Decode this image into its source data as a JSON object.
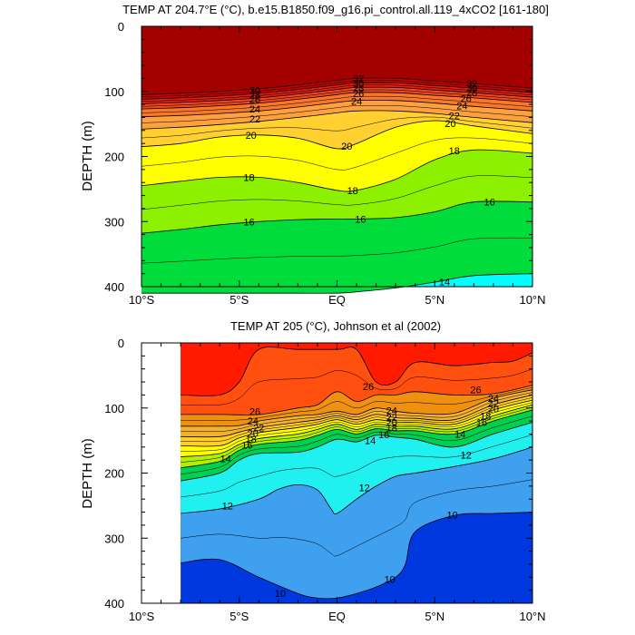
{
  "chart_data": [
    {
      "type": "contour",
      "title": "TEMP AT 204.7°E (°C), b.e15.B1850.f09_g16.pi_control.all.119_4xCO2 [161-180]",
      "ylabel": "DEPTH (m)",
      "x_ticks": [
        "10°S",
        "5°S",
        "EQ",
        "5°N",
        "10°N"
      ],
      "x_tick_values": [
        -10,
        -5,
        0,
        5,
        10
      ],
      "xlim": [
        -10,
        10
      ],
      "y_ticks": [
        "0",
        "100",
        "200",
        "300",
        "400"
      ],
      "y_tick_values": [
        0,
        100,
        200,
        300,
        400
      ],
      "ylim": [
        400,
        0
      ],
      "data_xmin": -10,
      "contour_labels": [
        "32",
        "30",
        "28",
        "26",
        "24",
        "22",
        "20",
        "18",
        "16",
        "14"
      ],
      "isotherms": [
        {
          "temp": 32,
          "x": [
            -10,
            -8,
            -6,
            -4,
            -2,
            0,
            1,
            3,
            5,
            7,
            10
          ],
          "depth": [
            105,
            103,
            100,
            96,
            90,
            83,
            80,
            80,
            84,
            88,
            95
          ]
        },
        {
          "temp": 30,
          "x": [
            -10,
            -8,
            -6,
            -4,
            -2,
            0,
            1,
            3,
            5,
            7,
            10
          ],
          "depth": [
            112,
            110,
            107,
            103,
            97,
            90,
            87,
            87,
            91,
            95,
            102
          ]
        },
        {
          "temp": 28,
          "x": [
            -10,
            -8,
            -6,
            -4,
            -2,
            0,
            1,
            3,
            5,
            7,
            10
          ],
          "depth": [
            119,
            117,
            114,
            110,
            104,
            97,
            94,
            94,
            98,
            102,
            109
          ]
        },
        {
          "temp": 26,
          "x": [
            -10,
            -8,
            -6,
            -4,
            -2,
            0,
            1,
            3,
            5,
            7,
            10
          ],
          "depth": [
            127,
            125,
            122,
            118,
            112,
            105,
            102,
            102,
            106,
            110,
            117
          ]
        },
        {
          "temp": 24,
          "x": [
            -10,
            -8,
            -6,
            -4,
            -2,
            0,
            1,
            3,
            5,
            7,
            10
          ],
          "depth": [
            139,
            137,
            134,
            130,
            124,
            117,
            114,
            114,
            118,
            123,
            130
          ]
        },
        {
          "temp": 22,
          "x": [
            -10,
            -8,
            -6,
            -4,
            -2,
            0,
            1,
            3,
            5,
            7,
            10
          ],
          "depth": [
            158,
            155,
            151,
            146,
            140,
            133,
            130,
            130,
            134,
            140,
            148
          ]
        },
        {
          "temp": 20,
          "x": [
            -10,
            -8,
            -6,
            -4,
            -2,
            0,
            1,
            3,
            5,
            7,
            10
          ],
          "depth": [
            185,
            180,
            170,
            167,
            172,
            188,
            180,
            155,
            145,
            153,
            165
          ]
        },
        {
          "temp": 18,
          "x": [
            -10,
            -8,
            -6,
            -4,
            -2,
            0,
            1,
            3,
            5,
            7,
            10
          ],
          "depth": [
            245,
            238,
            232,
            232,
            240,
            252,
            252,
            235,
            205,
            190,
            195
          ]
        },
        {
          "temp": 16,
          "x": [
            -10,
            -8,
            -6,
            -4,
            -2,
            0,
            1,
            3,
            5,
            7,
            10
          ],
          "depth": [
            318,
            312,
            305,
            300,
            297,
            296,
            296,
            294,
            285,
            270,
            270
          ]
        },
        {
          "temp": 14,
          "x": [
            -10,
            -8,
            -6,
            -4,
            -2,
            0,
            1,
            3,
            5,
            7,
            10
          ],
          "depth": [
            410,
            410,
            410,
            410,
            410,
            410,
            408,
            402,
            393,
            383,
            380
          ]
        }
      ]
    },
    {
      "type": "contour",
      "title": "TEMP AT 205 (°C), Johnson et al (2002)",
      "ylabel": "DEPTH (m)",
      "x_ticks": [
        "10°S",
        "5°S",
        "EQ",
        "5°N",
        "10°N"
      ],
      "x_tick_values": [
        -10,
        -5,
        0,
        5,
        10
      ],
      "xlim": [
        -10,
        10
      ],
      "y_ticks": [
        "0",
        "100",
        "200",
        "300",
        "400"
      ],
      "y_tick_values": [
        0,
        100,
        200,
        300,
        400
      ],
      "ylim": [
        400,
        0
      ],
      "data_xmin": -8,
      "contour_labels": [
        "26",
        "26",
        "26",
        "24",
        "24",
        "22",
        "22",
        "20",
        "20",
        "18",
        "16",
        "16",
        "14",
        "14",
        "14",
        "12",
        "12",
        "12",
        "10",
        "10",
        "10",
        "24",
        "22",
        "20",
        "18"
      ],
      "isotherms": [
        {
          "temp": 28,
          "x": [
            -8,
            -6,
            -5,
            -4,
            -2,
            0,
            1,
            2,
            3,
            4,
            6,
            8,
            9,
            10
          ],
          "depth": [
            80,
            80,
            60,
            10,
            10,
            10,
            10,
            60,
            60,
            30,
            35,
            30,
            28,
            15
          ]
        },
        {
          "temp": 26,
          "x": [
            -8,
            -6,
            -4,
            -2,
            -1,
            0,
            1,
            2,
            3,
            4,
            6,
            8,
            10
          ],
          "depth": [
            110,
            110,
            110,
            100,
            95,
            75,
            90,
            80,
            80,
            75,
            80,
            78,
            65
          ]
        },
        {
          "temp": 24,
          "x": [
            -8,
            -6,
            -5,
            -4,
            -2,
            -1,
            0,
            1,
            2,
            3,
            4,
            6,
            8,
            10
          ],
          "depth": [
            128,
            128,
            127,
            120,
            112,
            110,
            105,
            110,
            100,
            105,
            108,
            108,
            85,
            72
          ]
        },
        {
          "temp": 22,
          "x": [
            -8,
            -6,
            -5,
            -4,
            -2,
            -1,
            0,
            1,
            2,
            3,
            4,
            6,
            8,
            10
          ],
          "depth": [
            144,
            144,
            137,
            130,
            122,
            118,
            112,
            118,
            110,
            115,
            116,
            118,
            95,
            80
          ]
        },
        {
          "temp": 20,
          "x": [
            -8,
            -6,
            -5,
            -4,
            -2,
            -1,
            0,
            1,
            2,
            3,
            4,
            6,
            8,
            10
          ],
          "depth": [
            158,
            158,
            146,
            138,
            130,
            125,
            118,
            125,
            118,
            122,
            122,
            125,
            103,
            88
          ]
        },
        {
          "temp": 18,
          "x": [
            -8,
            -6,
            -5,
            -4,
            -2,
            -1,
            0,
            1,
            2,
            3,
            4,
            6,
            8,
            10
          ],
          "depth": [
            175,
            170,
            156,
            147,
            140,
            133,
            125,
            133,
            125,
            128,
            128,
            132,
            112,
            95
          ]
        },
        {
          "temp": 16,
          "x": [
            -8,
            -6,
            -5,
            -4,
            -2,
            -1,
            0,
            1,
            2,
            3,
            4,
            6,
            8,
            10
          ],
          "depth": [
            192,
            182,
            165,
            156,
            150,
            142,
            133,
            140,
            132,
            135,
            135,
            140,
            120,
            103
          ]
        },
        {
          "temp": 14,
          "x": [
            -8,
            -6,
            -5,
            -4,
            -2,
            -1,
            0,
            1,
            2,
            3,
            4,
            6,
            8,
            10
          ],
          "depth": [
            212,
            200,
            180,
            170,
            168,
            160,
            148,
            152,
            142,
            145,
            148,
            160,
            140,
            122
          ]
        },
        {
          "temp": 12,
          "x": [
            -8,
            -6,
            -4,
            -3,
            -2,
            -1,
            -0.3,
            0,
            1,
            2,
            3,
            4,
            6,
            8,
            10
          ],
          "depth": [
            262,
            255,
            240,
            225,
            218,
            226,
            255,
            262,
            240,
            220,
            205,
            200,
            190,
            178,
            160
          ]
        },
        {
          "temp": 10,
          "x": [
            -8,
            -6,
            -4,
            -2,
            -1,
            0,
            1,
            2,
            3,
            3.5,
            4,
            6,
            8,
            10
          ],
          "depth": [
            338,
            333,
            360,
            385,
            392,
            392,
            385,
            375,
            360,
            340,
            290,
            265,
            262,
            260
          ]
        }
      ]
    }
  ]
}
